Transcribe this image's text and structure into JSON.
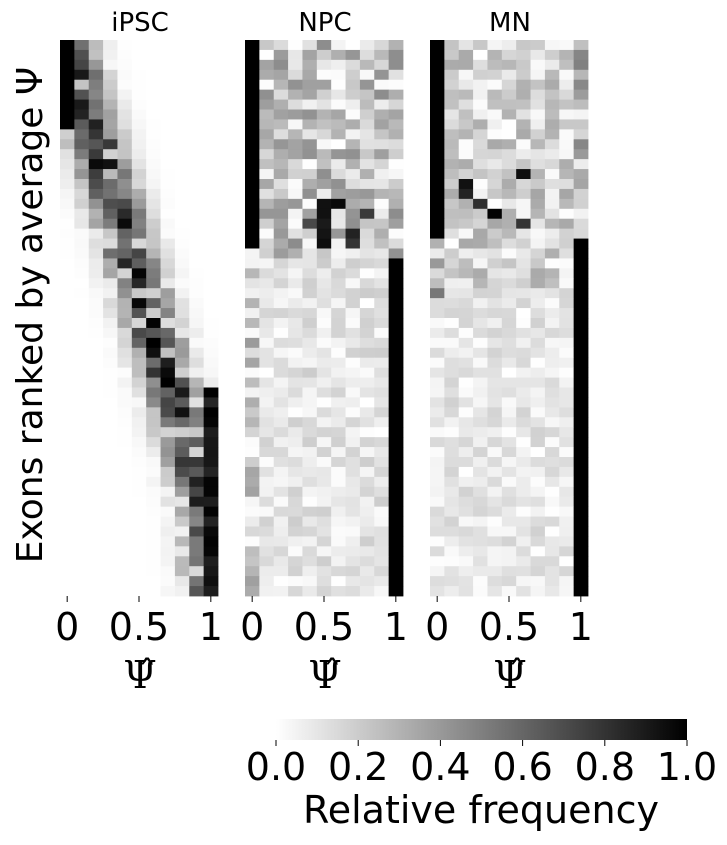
{
  "chart_data": {
    "type": "heatmap",
    "ylabel": "Exons ranked by average Ψ",
    "panels": [
      {
        "title": "iPSC",
        "xlabel": "Ψ̂",
        "xticks": [
          "0",
          "0.5",
          "1"
        ]
      },
      {
        "title": "NPC",
        "xlabel": "Ψ̂",
        "xticks": [
          "0",
          "0.5",
          "1"
        ]
      },
      {
        "title": "MN",
        "xlabel": "Ψ̂",
        "xticks": [
          "0",
          "0.5",
          "1"
        ]
      }
    ],
    "bins": 11,
    "rows": 56,
    "x_range": [
      0,
      1
    ],
    "colorbar": {
      "label": "Relative frequency",
      "ticks": [
        "0.0",
        "0.2",
        "0.4",
        "0.6",
        "0.8",
        "1.0"
      ],
      "range": [
        0,
        1
      ],
      "colormap": "Greys"
    }
  }
}
